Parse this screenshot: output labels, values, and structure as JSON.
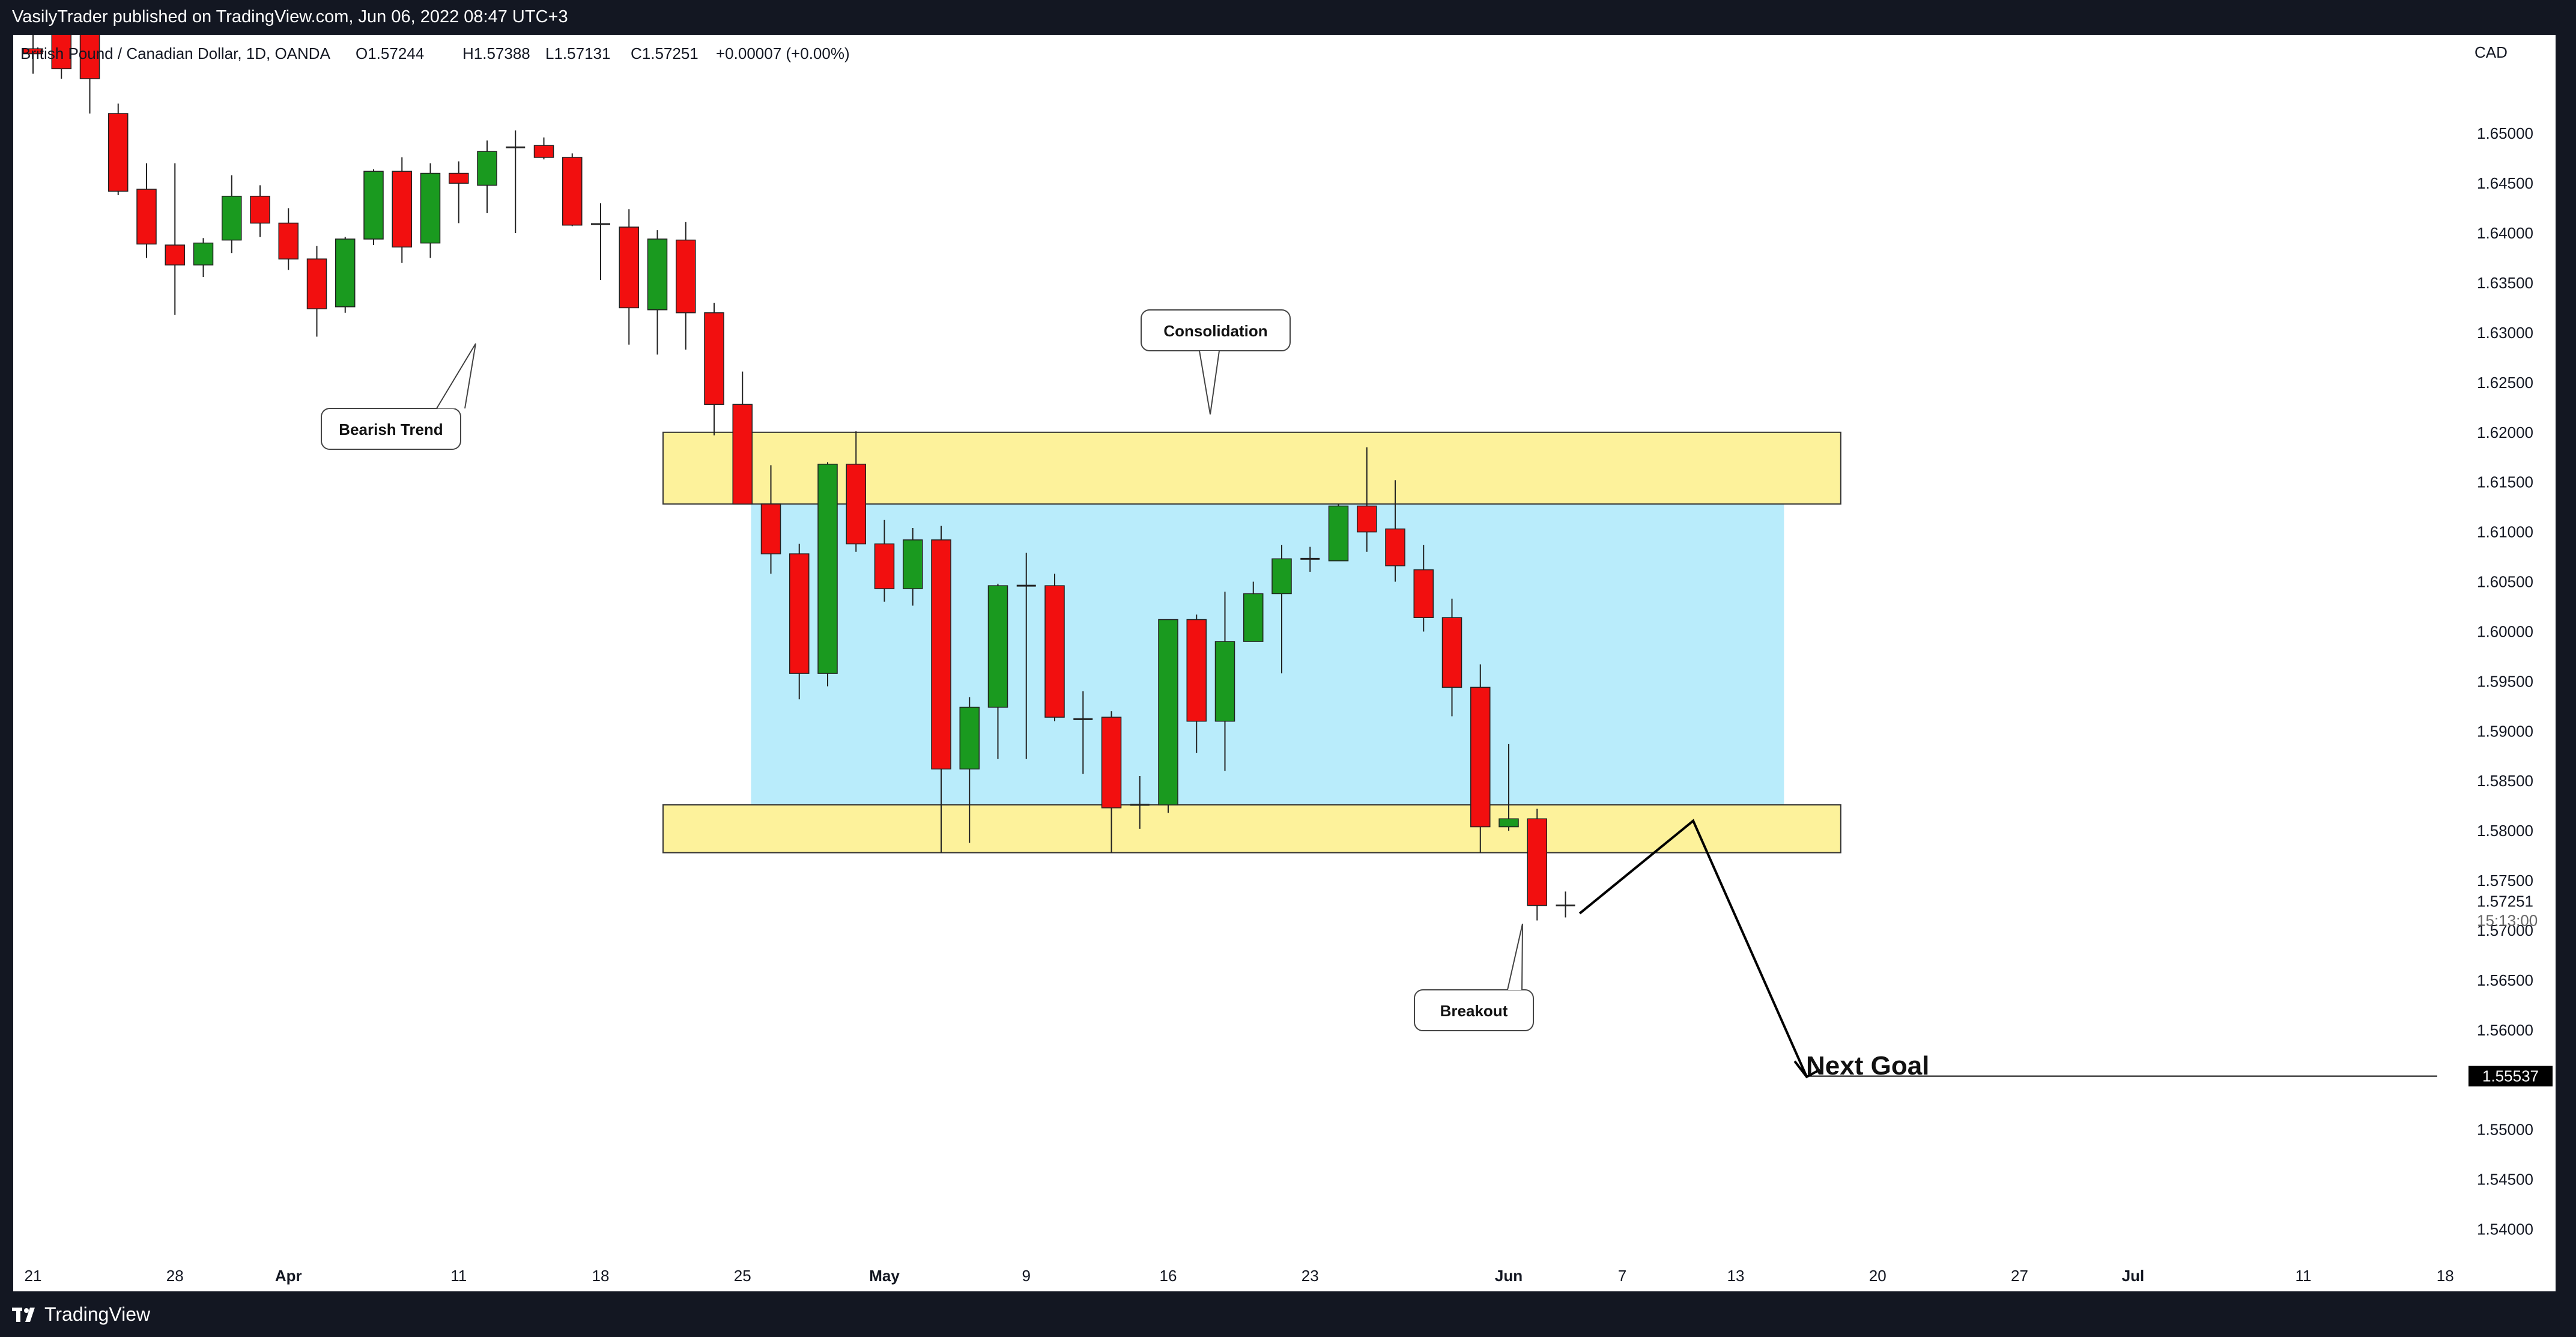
{
  "header": {
    "publish_text": "VasilyTrader published on TradingView.com, Jun 06, 2022 08:47 UTC+3"
  },
  "footer": {
    "brand": "TradingView",
    "logo_icon": "tradingview-logo-icon"
  },
  "colors": {
    "up": "#1a9a1f",
    "down": "#f20f0f",
    "consolidation_fill": "#b9ecfb",
    "zone_fill": "#fdf29b",
    "background": "#ffffff",
    "frame": "#131722"
  },
  "chart_data": {
    "type": "candlestick",
    "title": "British Pound / Canadian Dollar, 1D, OANDA",
    "ohlc_header": {
      "open": "O1.57244",
      "high": "H1.57388",
      "low": "L1.57131",
      "close": "C1.57251",
      "change": "+0.00007 (+0.00%)"
    },
    "currency": "CAD",
    "y_axis": {
      "ticks": [
        "1.65000",
        "1.64500",
        "1.64000",
        "1.63500",
        "1.63000",
        "1.62500",
        "1.62000",
        "1.61500",
        "1.61000",
        "1.60500",
        "1.60000",
        "1.59500",
        "1.59000",
        "1.58500",
        "1.58000",
        "1.57500",
        "1.57000",
        "1.56500",
        "1.56000",
        "1.55000",
        "1.54500",
        "1.54000"
      ],
      "range": [
        1.5369,
        1.6599
      ],
      "last_price": "1.57251",
      "countdown": "15:13:00",
      "goal_price": "1.55537"
    },
    "x_axis": {
      "labels": [
        {
          "text": "21",
          "idx": 0
        },
        {
          "text": "28",
          "idx": 5
        },
        {
          "text": "Apr",
          "idx": 9,
          "bold": true
        },
        {
          "text": "11",
          "idx": 15
        },
        {
          "text": "18",
          "idx": 20
        },
        {
          "text": "25",
          "idx": 25
        },
        {
          "text": "May",
          "idx": 30,
          "bold": true
        },
        {
          "text": "9",
          "idx": 35
        },
        {
          "text": "16",
          "idx": 40
        },
        {
          "text": "23",
          "idx": 45
        },
        {
          "text": "Jun",
          "idx": 52,
          "bold": true
        },
        {
          "text": "7",
          "idx": 56
        },
        {
          "text": "13",
          "idx": 60
        },
        {
          "text": "20",
          "idx": 65
        },
        {
          "text": "27",
          "idx": 70
        },
        {
          "text": "Jul",
          "idx": 74,
          "bold": true
        },
        {
          "text": "11",
          "idx": 80
        },
        {
          "text": "18",
          "idx": 85
        }
      ]
    },
    "candles": [
      {
        "o": 1.6585,
        "h": 1.6608,
        "l": 1.656,
        "c": 1.658
      },
      {
        "o": 1.66,
        "h": 1.662,
        "l": 1.6555,
        "c": 1.6565
      },
      {
        "o": 1.661,
        "h": 1.662,
        "l": 1.652,
        "c": 1.6555
      },
      {
        "o": 1.652,
        "h": 1.653,
        "l": 1.6438,
        "c": 1.6442
      },
      {
        "o": 1.6444,
        "h": 1.647,
        "l": 1.6375,
        "c": 1.6389
      },
      {
        "o": 1.6388,
        "h": 1.647,
        "l": 1.6318,
        "c": 1.6368
      },
      {
        "o": 1.6368,
        "h": 1.6395,
        "l": 1.6356,
        "c": 1.639
      },
      {
        "o": 1.6393,
        "h": 1.6458,
        "l": 1.638,
        "c": 1.6437
      },
      {
        "o": 1.6437,
        "h": 1.6448,
        "l": 1.6396,
        "c": 1.641
      },
      {
        "o": 1.641,
        "h": 1.6425,
        "l": 1.6363,
        "c": 1.6374
      },
      {
        "o": 1.6374,
        "h": 1.6387,
        "l": 1.6296,
        "c": 1.6324
      },
      {
        "o": 1.6326,
        "h": 1.6396,
        "l": 1.632,
        "c": 1.6394
      },
      {
        "o": 1.6394,
        "h": 1.6464,
        "l": 1.6388,
        "c": 1.6462
      },
      {
        "o": 1.6462,
        "h": 1.6476,
        "l": 1.637,
        "c": 1.6386
      },
      {
        "o": 1.639,
        "h": 1.647,
        "l": 1.6375,
        "c": 1.646
      },
      {
        "o": 1.646,
        "h": 1.6472,
        "l": 1.641,
        "c": 1.645
      },
      {
        "o": 1.6448,
        "h": 1.6493,
        "l": 1.642,
        "c": 1.6482
      },
      {
        "o": 1.6484,
        "h": 1.6503,
        "l": 1.64,
        "c": 1.6486
      },
      {
        "o": 1.6488,
        "h": 1.6496,
        "l": 1.6474,
        "c": 1.6476
      },
      {
        "o": 1.6476,
        "h": 1.648,
        "l": 1.6407,
        "c": 1.6408
      },
      {
        "o": 1.641,
        "h": 1.643,
        "l": 1.6353,
        "c": 1.6409
      },
      {
        "o": 1.6406,
        "h": 1.6424,
        "l": 1.6288,
        "c": 1.6325
      },
      {
        "o": 1.6323,
        "h": 1.6403,
        "l": 1.6278,
        "c": 1.6394
      },
      {
        "o": 1.6393,
        "h": 1.6411,
        "l": 1.6283,
        "c": 1.632
      },
      {
        "o": 1.632,
        "h": 1.633,
        "l": 1.6197,
        "c": 1.6228
      },
      {
        "o": 1.6228,
        "h": 1.6261,
        "l": 1.6128,
        "c": 1.6128
      },
      {
        "o": 1.6128,
        "h": 1.6167,
        "l": 1.6058,
        "c": 1.6078
      },
      {
        "o": 1.6078,
        "h": 1.6088,
        "l": 1.5932,
        "c": 1.5958
      },
      {
        "o": 1.5958,
        "h": 1.617,
        "l": 1.5945,
        "c": 1.6168
      },
      {
        "o": 1.6168,
        "h": 1.6201,
        "l": 1.608,
        "c": 1.6088
      },
      {
        "o": 1.6088,
        "h": 1.6112,
        "l": 1.603,
        "c": 1.6043
      },
      {
        "o": 1.6043,
        "h": 1.6104,
        "l": 1.6026,
        "c": 1.6092
      },
      {
        "o": 1.6092,
        "h": 1.6106,
        "l": 1.5778,
        "c": 1.5862
      },
      {
        "o": 1.5862,
        "h": 1.5934,
        "l": 1.5788,
        "c": 1.5924
      },
      {
        "o": 1.5924,
        "h": 1.6048,
        "l": 1.5872,
        "c": 1.6046
      },
      {
        "o": 1.6043,
        "h": 1.6079,
        "l": 1.5872,
        "c": 1.6046
      },
      {
        "o": 1.6046,
        "h": 1.6058,
        "l": 1.591,
        "c": 1.5914
      },
      {
        "o": 1.5914,
        "h": 1.594,
        "l": 1.5857,
        "c": 1.5912
      },
      {
        "o": 1.5914,
        "h": 1.592,
        "l": 1.5778,
        "c": 1.5823
      },
      {
        "o": 1.5823,
        "h": 1.5855,
        "l": 1.5802,
        "c": 1.5826
      },
      {
        "o": 1.5826,
        "h": 1.6012,
        "l": 1.5818,
        "c": 1.6012
      },
      {
        "o": 1.6012,
        "h": 1.6017,
        "l": 1.5878,
        "c": 1.591
      },
      {
        "o": 1.591,
        "h": 1.604,
        "l": 1.586,
        "c": 1.599
      },
      {
        "o": 1.599,
        "h": 1.605,
        "l": 1.599,
        "c": 1.6038
      },
      {
        "o": 1.6038,
        "h": 1.6087,
        "l": 1.5958,
        "c": 1.6073
      },
      {
        "o": 1.6072,
        "h": 1.6085,
        "l": 1.606,
        "c": 1.6073
      },
      {
        "o": 1.6071,
        "h": 1.6128,
        "l": 1.6071,
        "c": 1.6126
      },
      {
        "o": 1.6126,
        "h": 1.6185,
        "l": 1.608,
        "c": 1.61
      },
      {
        "o": 1.6103,
        "h": 1.6152,
        "l": 1.605,
        "c": 1.6066
      },
      {
        "o": 1.6062,
        "h": 1.6087,
        "l": 1.6,
        "c": 1.6014
      },
      {
        "o": 1.6014,
        "h": 1.6033,
        "l": 1.5915,
        "c": 1.5944
      },
      {
        "o": 1.5944,
        "h": 1.5967,
        "l": 1.5778,
        "c": 1.5804
      },
      {
        "o": 1.5804,
        "h": 1.5887,
        "l": 1.58,
        "c": 1.5812
      },
      {
        "o": 1.5812,
        "h": 1.5822,
        "l": 1.571,
        "c": 1.5725
      },
      {
        "o": 1.5724,
        "h": 1.5739,
        "l": 1.5713,
        "c": 1.5725
      }
    ],
    "annotations": [
      {
        "type": "callout",
        "text": "Bearish Trend"
      },
      {
        "type": "callout",
        "text": "Consolidation"
      },
      {
        "type": "callout",
        "text": "Breakout"
      },
      {
        "type": "label",
        "text": "Next Goal"
      }
    ],
    "zones": {
      "resistance": [
        1.6128,
        1.62
      ],
      "support": [
        1.5778,
        1.5826
      ],
      "range_box": [
        1.5826,
        1.6128
      ]
    },
    "projection": [
      {
        "idx": 54.5,
        "price": 1.5717
      },
      {
        "idx": 58.5,
        "price": 1.581
      },
      {
        "idx": 62.5,
        "price": 1.5553
      }
    ],
    "grid": false,
    "legend": "none"
  }
}
